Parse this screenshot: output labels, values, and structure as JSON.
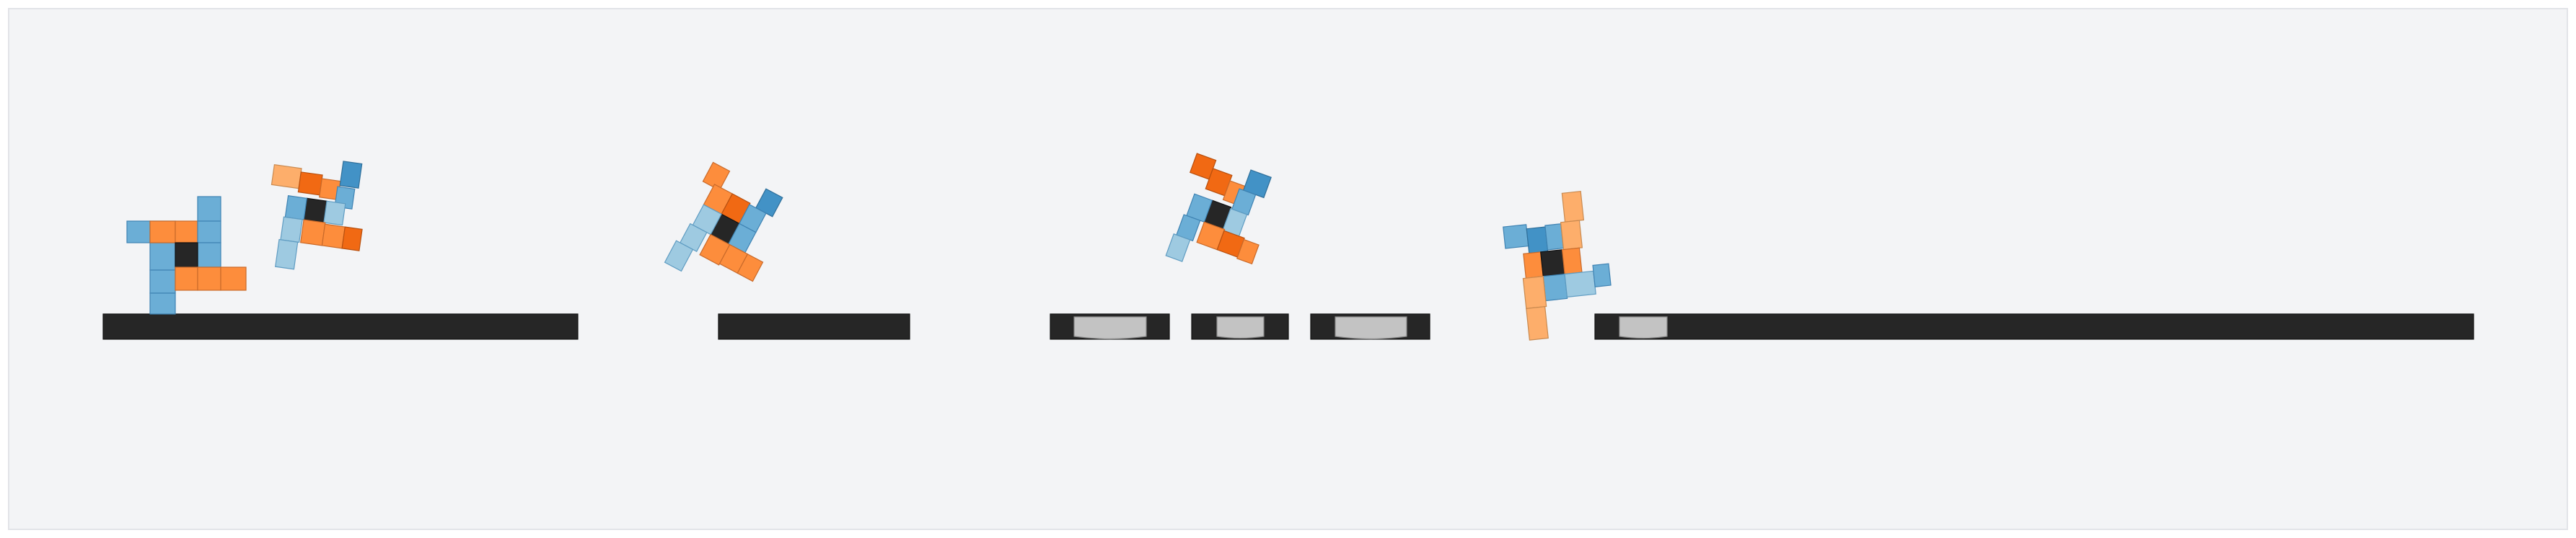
{
  "colors": {
    "background": "#f3f4f6",
    "frame_border": "#e2e4e8",
    "ground": "#262626",
    "ground_edge": "#111111",
    "core": "#262626",
    "blue_dark": "#4292c6",
    "blue_mid": "#6baed6",
    "blue_light": "#9ecae1",
    "orange_dark": "#f16913",
    "orange_mid": "#fd8d3c",
    "orange_light": "#fdae6b",
    "stepping_stone": "#c3c3c3"
  },
  "scene": {
    "description_free": true,
    "ground_segment_count": 6,
    "stepping_stone_count": 4,
    "robot_pose_count": 5
  }
}
